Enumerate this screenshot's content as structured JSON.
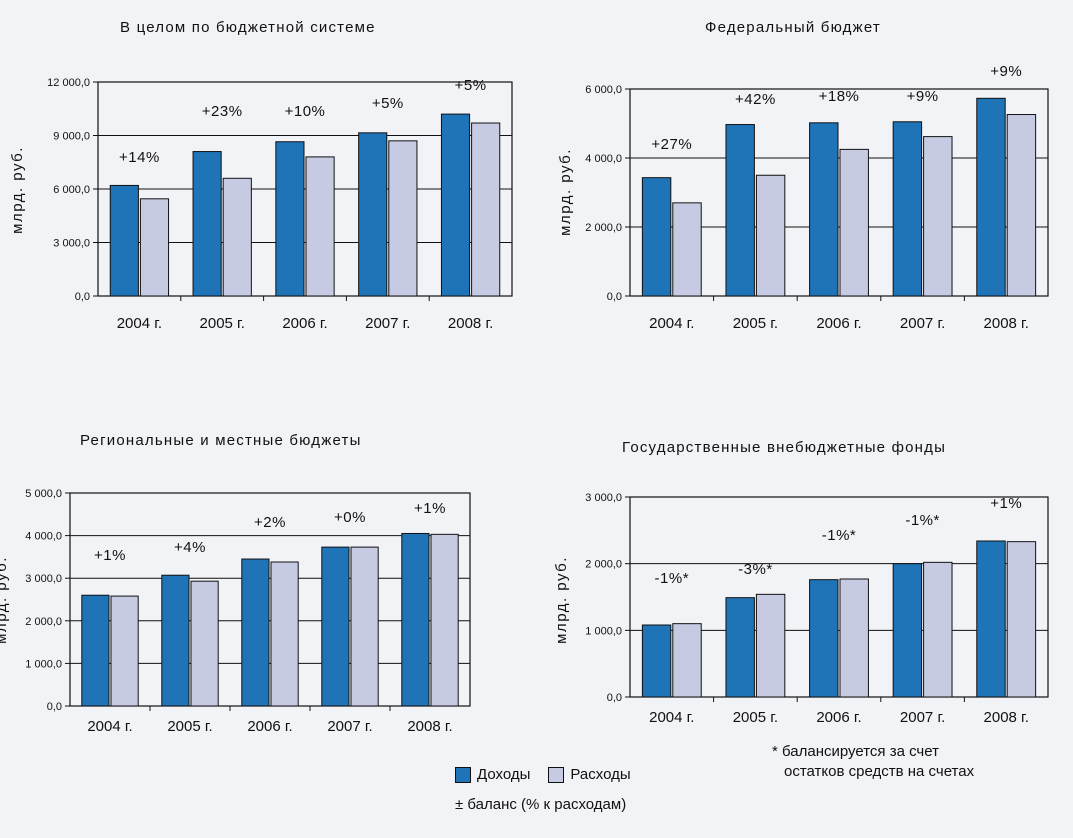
{
  "colors": {
    "revenue": "#1f73b7",
    "expense": "#c6cbe3",
    "grid": "#111111",
    "background": "#f2f3f7"
  },
  "legend": {
    "revenue_label": "Доходы",
    "expense_label": "Расходы",
    "balance_label": "± баланс (% к расходам)"
  },
  "footnote": {
    "line1": "* балансируется за счет",
    "line2": "остатков средств на счетах"
  },
  "chart_data": [
    {
      "type": "bar",
      "title": "В целом по бюджетной системе",
      "ylabel": "млрд. руб.",
      "categories": [
        "2004 г.",
        "2005 г.",
        "2006 г.",
        "2007 г.",
        "2008 г."
      ],
      "series": [
        {
          "name": "Доходы",
          "values": [
            6200,
            8100,
            8650,
            9150,
            10200
          ]
        },
        {
          "name": "Расходы",
          "values": [
            5450,
            6600,
            7800,
            8700,
            9700
          ]
        }
      ],
      "balance_labels": [
        "+14%",
        "+23%",
        "+10%",
        "+5%",
        "+5%"
      ],
      "ylim": [
        0,
        12000
      ],
      "yticks": [
        0,
        3000,
        6000,
        9000,
        12000
      ],
      "ytick_labels": [
        "0,0",
        "3 000,0",
        "6 000,0",
        "9 000,0",
        "12 000,0"
      ],
      "grid": true
    },
    {
      "type": "bar",
      "title": "Федеральный бюджет",
      "ylabel": "млрд. руб.",
      "categories": [
        "2004 г.",
        "2005 г.",
        "2006 г.",
        "2007 г.",
        "2008 г."
      ],
      "series": [
        {
          "name": "Доходы",
          "values": [
            3430,
            4970,
            5020,
            5050,
            5730
          ]
        },
        {
          "name": "Расходы",
          "values": [
            2700,
            3500,
            4250,
            4620,
            5260
          ]
        }
      ],
      "balance_labels": [
        "+27%",
        "+42%",
        "+18%",
        "+9%",
        "+9%"
      ],
      "ylim": [
        0,
        6000
      ],
      "yticks": [
        0,
        2000,
        4000,
        6000
      ],
      "ytick_labels": [
        "0,0",
        "2 000,0",
        "4 000,0",
        "6 000,0"
      ],
      "grid": true
    },
    {
      "type": "bar",
      "title": "Региональные и местные бюджеты",
      "ylabel": "млрд. руб.",
      "categories": [
        "2004 г.",
        "2005 г.",
        "2006 г.",
        "2007 г.",
        "2008 г."
      ],
      "series": [
        {
          "name": "Доходы",
          "values": [
            2600,
            3070,
            3450,
            3730,
            4050
          ]
        },
        {
          "name": "Расходы",
          "values": [
            2580,
            2930,
            3380,
            3730,
            4030
          ]
        }
      ],
      "balance_labels": [
        "+1%",
        "+4%",
        "+2%",
        "+0%",
        "+1%"
      ],
      "ylim": [
        0,
        5000
      ],
      "yticks": [
        0,
        1000,
        2000,
        3000,
        4000,
        5000
      ],
      "ytick_labels": [
        "0,0",
        "1 000,0",
        "2 000,0",
        "3 000,0",
        "4 000,0",
        "5 000,0"
      ],
      "grid": true
    },
    {
      "type": "bar",
      "title": "Государственные внебюджетные фонды",
      "ylabel": "млрд. руб.",
      "categories": [
        "2004 г.",
        "2005 г.",
        "2006 г.",
        "2007 г.",
        "2008 г."
      ],
      "series": [
        {
          "name": "Доходы",
          "values": [
            1080,
            1490,
            1760,
            2000,
            2340
          ]
        },
        {
          "name": "Расходы",
          "values": [
            1100,
            1540,
            1770,
            2020,
            2330
          ]
        }
      ],
      "balance_labels": [
        "-1%*",
        "-3%*",
        "-1%*",
        "-1%*",
        "+1%"
      ],
      "ylim": [
        0,
        3000
      ],
      "yticks": [
        0,
        1000,
        2000,
        3000
      ],
      "ytick_labels": [
        "0,0",
        "1 000,0",
        "2 000,0",
        "3 000,0"
      ],
      "grid": true
    }
  ]
}
